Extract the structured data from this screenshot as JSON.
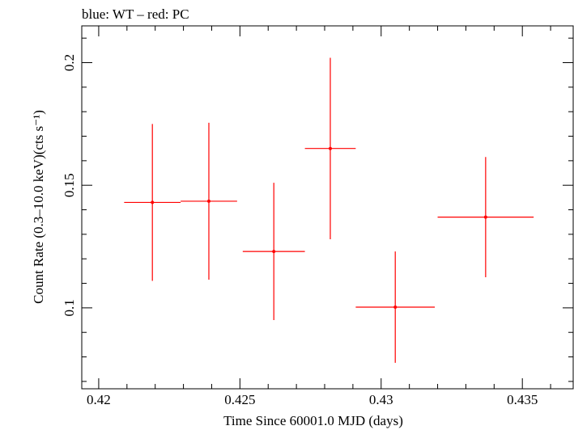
{
  "chart_data": {
    "type": "scatter",
    "title": "blue: WT – red: PC",
    "xlabel": "Time Since 60001.0 MJD (days)",
    "ylabel": "Count Rate (0.3–10.0 keV)(cts s⁻¹)",
    "xlim": [
      0.4194,
      0.4368
    ],
    "ylim": [
      0.067,
      0.215
    ],
    "xticks": [
      0.42,
      0.425,
      0.43,
      0.435
    ],
    "xtick_labels": [
      "0.42",
      "0.425",
      "0.43",
      "0.435"
    ],
    "yticks": [
      0.1,
      0.15,
      0.2
    ],
    "ytick_labels": [
      "0.1",
      "0.15",
      "0.2"
    ],
    "grid": false,
    "series": [
      {
        "color": "#ff0000",
        "points": [
          {
            "x": 0.4219,
            "y": 0.143,
            "xerr": 0.001,
            "yerr": 0.032
          },
          {
            "x": 0.4239,
            "y": 0.1435,
            "xerr": 0.001,
            "yerr": 0.032
          },
          {
            "x": 0.4262,
            "y": 0.123,
            "xerr": 0.0011,
            "yerr": 0.028
          },
          {
            "x": 0.4282,
            "y": 0.165,
            "xerr": 0.0009,
            "yerr": 0.037
          },
          {
            "x": 0.4305,
            "y": 0.1003,
            "xerr": 0.0014,
            "yerr": 0.0227
          },
          {
            "x": 0.4337,
            "y": 0.137,
            "xerr": 0.0017,
            "yerr": 0.0245
          }
        ]
      }
    ]
  }
}
